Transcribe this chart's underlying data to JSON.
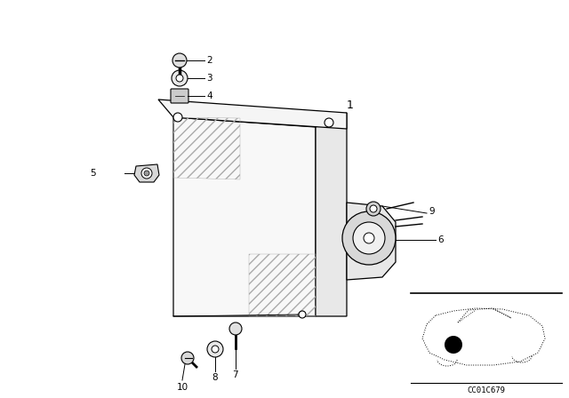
{
  "background_color": "#ffffff",
  "fig_width": 6.4,
  "fig_height": 4.48,
  "dpi": 100,
  "line_color": "#000000",
  "text_color": "#000000",
  "font_size": 7.5,
  "car_code": "CC01C679"
}
